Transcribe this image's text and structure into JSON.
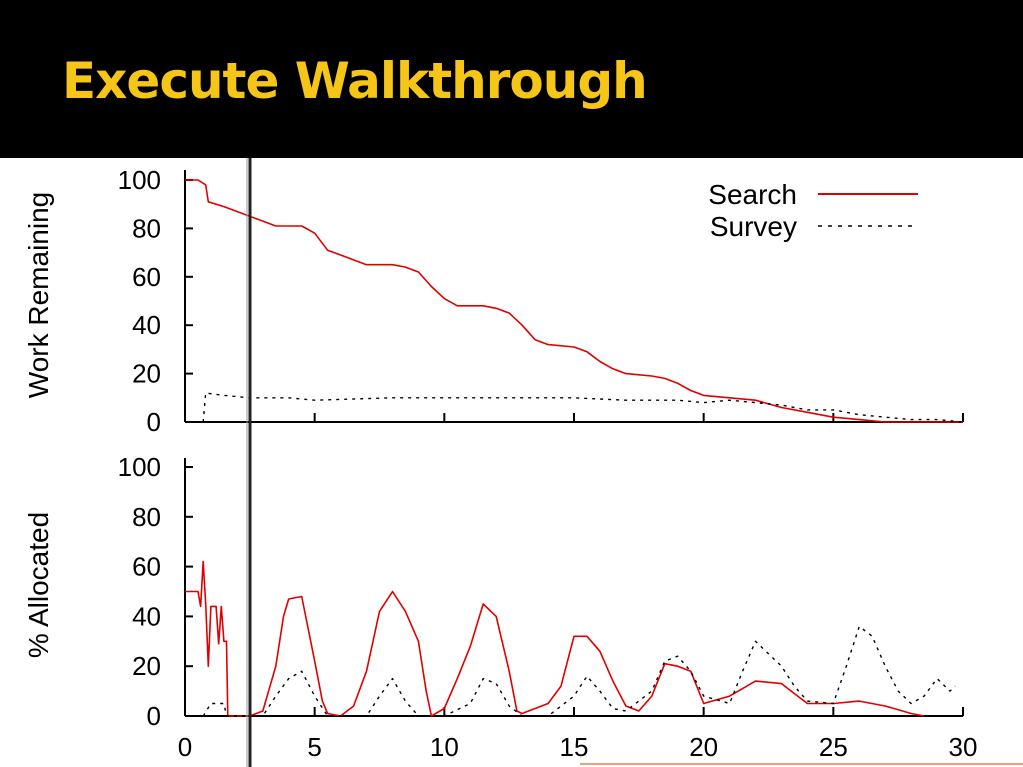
{
  "slide": {
    "title": "Execute Walkthrough"
  },
  "colors": {
    "title_bg": "#000000",
    "title_text": "#f5c518",
    "search": "#e00000",
    "survey": "#000000",
    "accent_line": "#f2a07b"
  },
  "chart_data": [
    {
      "type": "line",
      "ylabel": "Work Remaining",
      "xlim": [
        0,
        30
      ],
      "ylim": [
        0,
        100
      ],
      "yticks": [
        "100",
        "80",
        "60",
        "40",
        "20",
        "0"
      ],
      "legend": {
        "placement": "top-right",
        "entries": [
          "Search",
          "Survey"
        ]
      },
      "series": [
        {
          "name": "Search",
          "style": "solid",
          "points": [
            [
              0,
              100
            ],
            [
              0.5,
              100
            ],
            [
              0.8,
              98
            ],
            [
              0.9,
              91
            ],
            [
              1.5,
              89
            ],
            [
              2,
              87
            ],
            [
              3,
              83
            ],
            [
              3.5,
              81
            ],
            [
              4,
              81
            ],
            [
              4.5,
              81
            ],
            [
              5,
              78
            ],
            [
              5.5,
              71
            ],
            [
              6,
              69
            ],
            [
              7,
              65
            ],
            [
              8,
              65
            ],
            [
              8.5,
              64
            ],
            [
              9,
              62
            ],
            [
              9.5,
              56
            ],
            [
              10,
              51
            ],
            [
              10.5,
              48
            ],
            [
              11,
              48
            ],
            [
              11.5,
              48
            ],
            [
              12,
              47
            ],
            [
              12.5,
              45
            ],
            [
              13,
              40
            ],
            [
              13.5,
              34
            ],
            [
              14,
              32
            ],
            [
              15,
              31
            ],
            [
              15.5,
              29
            ],
            [
              16,
              25
            ],
            [
              16.5,
              22
            ],
            [
              17,
              20
            ],
            [
              18,
              19
            ],
            [
              18.5,
              18
            ],
            [
              19,
              16
            ],
            [
              19.5,
              13
            ],
            [
              20,
              11
            ],
            [
              21,
              10
            ],
            [
              22,
              9
            ],
            [
              23,
              6
            ],
            [
              24,
              4
            ],
            [
              25,
              2
            ],
            [
              26,
              1
            ],
            [
              27,
              0
            ],
            [
              30,
              0
            ]
          ]
        },
        {
          "name": "Survey",
          "style": "dashed",
          "points": [
            [
              0.7,
              0
            ],
            [
              0.8,
              12
            ],
            [
              1.5,
              11
            ],
            [
              2.5,
              10
            ],
            [
              4,
              10
            ],
            [
              5,
              9
            ],
            [
              8,
              10
            ],
            [
              10,
              10
            ],
            [
              12,
              10
            ],
            [
              15,
              10
            ],
            [
              17,
              9
            ],
            [
              19,
              9
            ],
            [
              20,
              8
            ],
            [
              21,
              9
            ],
            [
              22,
              8
            ],
            [
              23,
              7
            ],
            [
              24,
              5
            ],
            [
              25,
              5
            ],
            [
              26,
              3
            ],
            [
              27,
              2
            ],
            [
              28,
              1
            ],
            [
              29,
              1
            ],
            [
              30,
              0
            ]
          ]
        }
      ]
    },
    {
      "type": "line",
      "ylabel": "% Allocated",
      "xlim": [
        0,
        30
      ],
      "ylim": [
        0,
        100
      ],
      "yticks": [
        "100",
        "80",
        "60",
        "40",
        "20",
        "0"
      ],
      "xticks": [
        "0",
        "5",
        "10",
        "15",
        "20",
        "25",
        "30"
      ],
      "series": [
        {
          "name": "Search",
          "style": "solid",
          "points": [
            [
              0,
              50
            ],
            [
              0.5,
              50
            ],
            [
              0.6,
              44
            ],
            [
              0.7,
              62
            ],
            [
              0.8,
              45
            ],
            [
              0.9,
              20
            ],
            [
              1,
              44
            ],
            [
              1.2,
              44
            ],
            [
              1.3,
              29
            ],
            [
              1.4,
              44
            ],
            [
              1.5,
              30
            ],
            [
              1.6,
              30
            ],
            [
              1.65,
              0
            ],
            [
              2.5,
              0
            ],
            [
              3,
              2
            ],
            [
              3.5,
              20
            ],
            [
              3.8,
              40
            ],
            [
              4,
              47
            ],
            [
              4.5,
              48
            ],
            [
              5,
              22
            ],
            [
              5.3,
              6
            ],
            [
              5.5,
              1
            ],
            [
              6,
              0
            ],
            [
              6.5,
              4
            ],
            [
              7,
              18
            ],
            [
              7.5,
              42
            ],
            [
              8,
              50
            ],
            [
              8.5,
              42
            ],
            [
              9,
              30
            ],
            [
              9.3,
              10
            ],
            [
              9.5,
              0
            ],
            [
              10,
              3
            ],
            [
              10.5,
              15
            ],
            [
              11,
              28
            ],
            [
              11.5,
              45
            ],
            [
              12,
              40
            ],
            [
              12.5,
              18
            ],
            [
              12.8,
              2
            ],
            [
              13,
              1
            ],
            [
              14,
              5
            ],
            [
              14.5,
              12
            ],
            [
              15,
              32
            ],
            [
              15.5,
              32
            ],
            [
              16,
              26
            ],
            [
              16.5,
              14
            ],
            [
              17,
              4
            ],
            [
              17.5,
              2
            ],
            [
              18,
              8
            ],
            [
              18.5,
              21
            ],
            [
              19,
              20
            ],
            [
              19.5,
              18
            ],
            [
              20,
              5
            ],
            [
              21,
              8
            ],
            [
              22,
              14
            ],
            [
              23,
              13
            ],
            [
              23.5,
              9
            ],
            [
              24,
              5
            ],
            [
              25,
              5
            ],
            [
              26,
              6
            ],
            [
              27,
              4
            ],
            [
              28,
              1
            ],
            [
              28.5,
              0
            ]
          ]
        },
        {
          "name": "Survey",
          "style": "dashed",
          "points": [
            [
              0.7,
              0
            ],
            [
              1,
              5
            ],
            [
              1.5,
              5
            ],
            [
              1.6,
              0
            ],
            [
              3,
              0
            ],
            [
              3.5,
              8
            ],
            [
              4,
              15
            ],
            [
              4.5,
              18
            ],
            [
              5,
              8
            ],
            [
              5.5,
              0
            ],
            [
              7,
              0
            ],
            [
              7.5,
              8
            ],
            [
              8,
              15
            ],
            [
              8.5,
              6
            ],
            [
              9,
              0
            ],
            [
              10,
              0
            ],
            [
              11,
              5
            ],
            [
              11.5,
              15
            ],
            [
              12,
              13
            ],
            [
              12.5,
              4
            ],
            [
              13,
              0
            ],
            [
              14,
              0
            ],
            [
              15,
              8
            ],
            [
              15.5,
              16
            ],
            [
              16,
              10
            ],
            [
              16.5,
              3
            ],
            [
              17,
              2
            ],
            [
              18,
              10
            ],
            [
              18.5,
              22
            ],
            [
              19,
              24
            ],
            [
              19.5,
              18
            ],
            [
              20,
              8
            ],
            [
              21,
              5
            ],
            [
              21.5,
              18
            ],
            [
              22,
              30
            ],
            [
              22.5,
              25
            ],
            [
              23,
              20
            ],
            [
              23.5,
              12
            ],
            [
              24,
              6
            ],
            [
              25,
              5
            ],
            [
              25.5,
              20
            ],
            [
              26,
              36
            ],
            [
              26.5,
              32
            ],
            [
              27,
              20
            ],
            [
              27.5,
              10
            ],
            [
              28,
              5
            ],
            [
              28.5,
              8
            ],
            [
              29,
              15
            ],
            [
              29.5,
              10
            ],
            [
              29.7,
              12
            ]
          ]
        }
      ]
    }
  ]
}
